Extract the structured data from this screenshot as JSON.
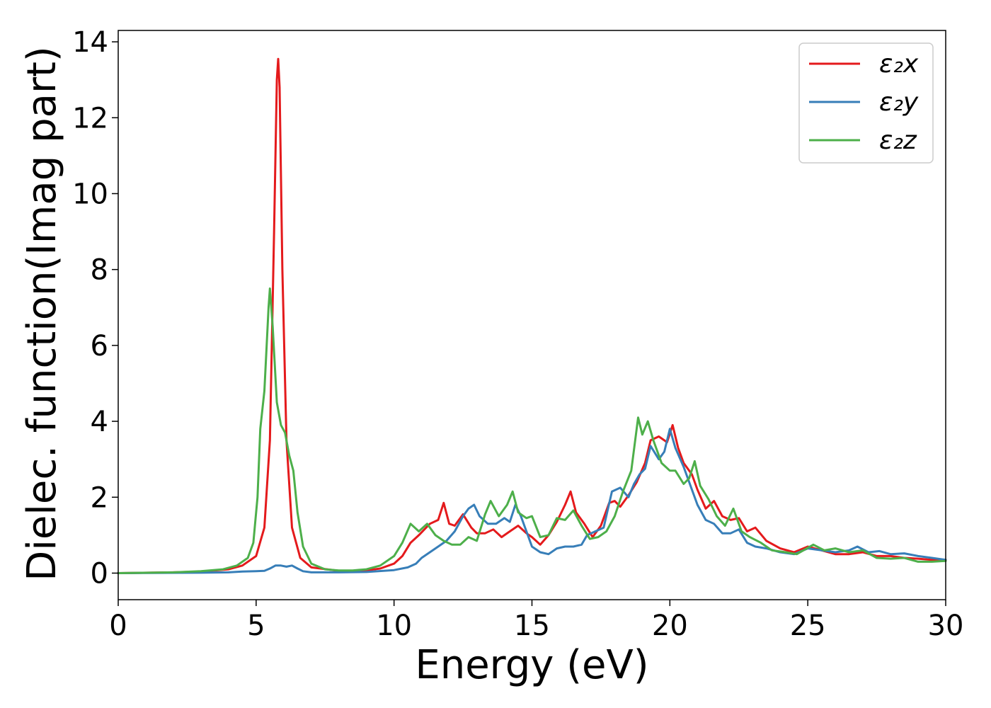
{
  "chart_data": {
    "type": "line",
    "title": "",
    "xlabel": "Energy (eV)",
    "ylabel": "Dielec. function(Imag part)",
    "xlim": [
      0,
      30
    ],
    "ylim": [
      -0.7,
      14.3
    ],
    "xticks": [
      0,
      5,
      10,
      15,
      20,
      25,
      30
    ],
    "yticks": [
      0,
      2,
      4,
      6,
      8,
      10,
      12,
      14
    ],
    "grid": false,
    "legend_position": "top-right",
    "series": [
      {
        "name": "ε₂x",
        "color": "#e41a1c",
        "points": [
          [
            0,
            0.0
          ],
          [
            2,
            0.02
          ],
          [
            3,
            0.04
          ],
          [
            4,
            0.1
          ],
          [
            4.5,
            0.2
          ],
          [
            5,
            0.45
          ],
          [
            5.3,
            1.2
          ],
          [
            5.5,
            3.5
          ],
          [
            5.65,
            9.0
          ],
          [
            5.75,
            13.0
          ],
          [
            5.8,
            13.55
          ],
          [
            5.85,
            12.8
          ],
          [
            5.95,
            8.0
          ],
          [
            6.1,
            3.5
          ],
          [
            6.3,
            1.2
          ],
          [
            6.6,
            0.4
          ],
          [
            7,
            0.15
          ],
          [
            8,
            0.06
          ],
          [
            9,
            0.07
          ],
          [
            9.5,
            0.12
          ],
          [
            10,
            0.25
          ],
          [
            10.3,
            0.45
          ],
          [
            10.6,
            0.8
          ],
          [
            10.9,
            1.0
          ],
          [
            11.1,
            1.15
          ],
          [
            11.3,
            1.3
          ],
          [
            11.6,
            1.4
          ],
          [
            11.8,
            1.85
          ],
          [
            12.0,
            1.3
          ],
          [
            12.2,
            1.25
          ],
          [
            12.5,
            1.55
          ],
          [
            12.8,
            1.2
          ],
          [
            13.0,
            1.05
          ],
          [
            13.3,
            1.05
          ],
          [
            13.6,
            1.15
          ],
          [
            13.9,
            0.95
          ],
          [
            14.2,
            1.1
          ],
          [
            14.5,
            1.25
          ],
          [
            14.8,
            1.05
          ],
          [
            15.0,
            0.95
          ],
          [
            15.3,
            0.75
          ],
          [
            15.6,
            1.0
          ],
          [
            15.9,
            1.35
          ],
          [
            16.2,
            1.8
          ],
          [
            16.4,
            2.15
          ],
          [
            16.6,
            1.6
          ],
          [
            16.9,
            1.3
          ],
          [
            17.2,
            0.95
          ],
          [
            17.5,
            1.25
          ],
          [
            17.8,
            1.85
          ],
          [
            18.0,
            1.9
          ],
          [
            18.2,
            1.75
          ],
          [
            18.5,
            2.05
          ],
          [
            18.8,
            2.4
          ],
          [
            19.1,
            2.9
          ],
          [
            19.3,
            3.5
          ],
          [
            19.6,
            3.6
          ],
          [
            19.9,
            3.45
          ],
          [
            20.1,
            3.9
          ],
          [
            20.3,
            3.3
          ],
          [
            20.5,
            2.9
          ],
          [
            20.8,
            2.6
          ],
          [
            21.0,
            2.2
          ],
          [
            21.3,
            1.7
          ],
          [
            21.6,
            1.9
          ],
          [
            21.9,
            1.5
          ],
          [
            22.2,
            1.4
          ],
          [
            22.5,
            1.45
          ],
          [
            22.8,
            1.1
          ],
          [
            23.1,
            1.2
          ],
          [
            23.5,
            0.85
          ],
          [
            24,
            0.65
          ],
          [
            24.5,
            0.55
          ],
          [
            25,
            0.7
          ],
          [
            25.5,
            0.6
          ],
          [
            26,
            0.5
          ],
          [
            26.5,
            0.5
          ],
          [
            27,
            0.55
          ],
          [
            27.5,
            0.45
          ],
          [
            28,
            0.45
          ],
          [
            28.5,
            0.4
          ],
          [
            29,
            0.38
          ],
          [
            29.5,
            0.35
          ],
          [
            30,
            0.35
          ]
        ]
      },
      {
        "name": "ε₂y",
        "color": "#377eb8",
        "points": [
          [
            0,
            0.0
          ],
          [
            3,
            0.01
          ],
          [
            4,
            0.02
          ],
          [
            4.5,
            0.04
          ],
          [
            5,
            0.05
          ],
          [
            5.3,
            0.06
          ],
          [
            5.5,
            0.12
          ],
          [
            5.7,
            0.2
          ],
          [
            5.9,
            0.2
          ],
          [
            6.1,
            0.17
          ],
          [
            6.3,
            0.2
          ],
          [
            6.5,
            0.12
          ],
          [
            6.7,
            0.05
          ],
          [
            7,
            0.02
          ],
          [
            8,
            0.02
          ],
          [
            9,
            0.03
          ],
          [
            10,
            0.08
          ],
          [
            10.5,
            0.15
          ],
          [
            10.8,
            0.25
          ],
          [
            11.0,
            0.4
          ],
          [
            11.3,
            0.55
          ],
          [
            11.6,
            0.7
          ],
          [
            11.9,
            0.85
          ],
          [
            12.2,
            1.1
          ],
          [
            12.5,
            1.5
          ],
          [
            12.7,
            1.7
          ],
          [
            12.9,
            1.8
          ],
          [
            13.1,
            1.5
          ],
          [
            13.4,
            1.3
          ],
          [
            13.7,
            1.3
          ],
          [
            14.0,
            1.45
          ],
          [
            14.2,
            1.35
          ],
          [
            14.4,
            1.8
          ],
          [
            14.6,
            1.5
          ],
          [
            14.8,
            1.1
          ],
          [
            15.0,
            0.7
          ],
          [
            15.3,
            0.55
          ],
          [
            15.6,
            0.5
          ],
          [
            15.9,
            0.65
          ],
          [
            16.2,
            0.7
          ],
          [
            16.5,
            0.7
          ],
          [
            16.8,
            0.75
          ],
          [
            17.0,
            1.0
          ],
          [
            17.3,
            1.1
          ],
          [
            17.6,
            1.2
          ],
          [
            17.9,
            2.15
          ],
          [
            18.2,
            2.25
          ],
          [
            18.5,
            2.0
          ],
          [
            18.7,
            2.35
          ],
          [
            18.9,
            2.6
          ],
          [
            19.1,
            2.75
          ],
          [
            19.3,
            3.35
          ],
          [
            19.6,
            3.0
          ],
          [
            19.8,
            3.2
          ],
          [
            20.0,
            3.8
          ],
          [
            20.2,
            3.3
          ],
          [
            20.5,
            2.8
          ],
          [
            20.8,
            2.2
          ],
          [
            21.0,
            1.8
          ],
          [
            21.3,
            1.4
          ],
          [
            21.6,
            1.3
          ],
          [
            21.9,
            1.05
          ],
          [
            22.2,
            1.05
          ],
          [
            22.5,
            1.15
          ],
          [
            22.8,
            0.8
          ],
          [
            23.1,
            0.7
          ],
          [
            23.5,
            0.65
          ],
          [
            24,
            0.55
          ],
          [
            24.5,
            0.5
          ],
          [
            25,
            0.65
          ],
          [
            25.5,
            0.6
          ],
          [
            26,
            0.55
          ],
          [
            26.5,
            0.6
          ],
          [
            26.8,
            0.7
          ],
          [
            27.2,
            0.55
          ],
          [
            27.6,
            0.58
          ],
          [
            28,
            0.5
          ],
          [
            28.5,
            0.52
          ],
          [
            29,
            0.45
          ],
          [
            29.5,
            0.4
          ],
          [
            30,
            0.35
          ]
        ]
      },
      {
        "name": "ε₂z",
        "color": "#4daf4a",
        "points": [
          [
            0,
            0.0
          ],
          [
            2,
            0.02
          ],
          [
            3,
            0.05
          ],
          [
            3.8,
            0.1
          ],
          [
            4.3,
            0.2
          ],
          [
            4.7,
            0.4
          ],
          [
            4.9,
            0.8
          ],
          [
            5.05,
            2.0
          ],
          [
            5.15,
            3.8
          ],
          [
            5.3,
            4.8
          ],
          [
            5.45,
            7.0
          ],
          [
            5.5,
            7.5
          ],
          [
            5.6,
            6.5
          ],
          [
            5.75,
            4.5
          ],
          [
            5.9,
            3.9
          ],
          [
            6.05,
            3.7
          ],
          [
            6.2,
            3.1
          ],
          [
            6.35,
            2.7
          ],
          [
            6.5,
            1.6
          ],
          [
            6.7,
            0.7
          ],
          [
            7,
            0.25
          ],
          [
            7.5,
            0.1
          ],
          [
            8,
            0.07
          ],
          [
            8.5,
            0.07
          ],
          [
            9,
            0.1
          ],
          [
            9.5,
            0.2
          ],
          [
            10,
            0.45
          ],
          [
            10.3,
            0.8
          ],
          [
            10.6,
            1.3
          ],
          [
            10.9,
            1.1
          ],
          [
            11.2,
            1.3
          ],
          [
            11.5,
            1.0
          ],
          [
            11.8,
            0.85
          ],
          [
            12.1,
            0.75
          ],
          [
            12.4,
            0.75
          ],
          [
            12.7,
            0.95
          ],
          [
            13.0,
            0.85
          ],
          [
            13.3,
            1.55
          ],
          [
            13.5,
            1.9
          ],
          [
            13.8,
            1.5
          ],
          [
            14.1,
            1.8
          ],
          [
            14.3,
            2.15
          ],
          [
            14.5,
            1.6
          ],
          [
            14.8,
            1.45
          ],
          [
            15.0,
            1.5
          ],
          [
            15.3,
            0.95
          ],
          [
            15.6,
            1.0
          ],
          [
            15.9,
            1.45
          ],
          [
            16.2,
            1.4
          ],
          [
            16.5,
            1.65
          ],
          [
            16.8,
            1.25
          ],
          [
            17.1,
            0.9
          ],
          [
            17.4,
            0.95
          ],
          [
            17.7,
            1.1
          ],
          [
            18.0,
            1.5
          ],
          [
            18.3,
            2.15
          ],
          [
            18.6,
            2.7
          ],
          [
            18.85,
            4.1
          ],
          [
            19.0,
            3.65
          ],
          [
            19.2,
            4.0
          ],
          [
            19.4,
            3.5
          ],
          [
            19.7,
            2.9
          ],
          [
            20.0,
            2.7
          ],
          [
            20.2,
            2.7
          ],
          [
            20.5,
            2.35
          ],
          [
            20.7,
            2.5
          ],
          [
            20.9,
            2.95
          ],
          [
            21.1,
            2.3
          ],
          [
            21.4,
            1.95
          ],
          [
            21.7,
            1.5
          ],
          [
            22.0,
            1.25
          ],
          [
            22.3,
            1.7
          ],
          [
            22.6,
            1.1
          ],
          [
            22.9,
            0.95
          ],
          [
            23.3,
            0.8
          ],
          [
            23.7,
            0.6
          ],
          [
            24.2,
            0.55
          ],
          [
            24.6,
            0.5
          ],
          [
            25.2,
            0.75
          ],
          [
            25.6,
            0.6
          ],
          [
            26.0,
            0.65
          ],
          [
            26.5,
            0.55
          ],
          [
            27.0,
            0.6
          ],
          [
            27.5,
            0.4
          ],
          [
            28.0,
            0.38
          ],
          [
            28.5,
            0.4
          ],
          [
            29.0,
            0.3
          ],
          [
            29.5,
            0.3
          ],
          [
            30,
            0.32
          ]
        ]
      }
    ]
  }
}
